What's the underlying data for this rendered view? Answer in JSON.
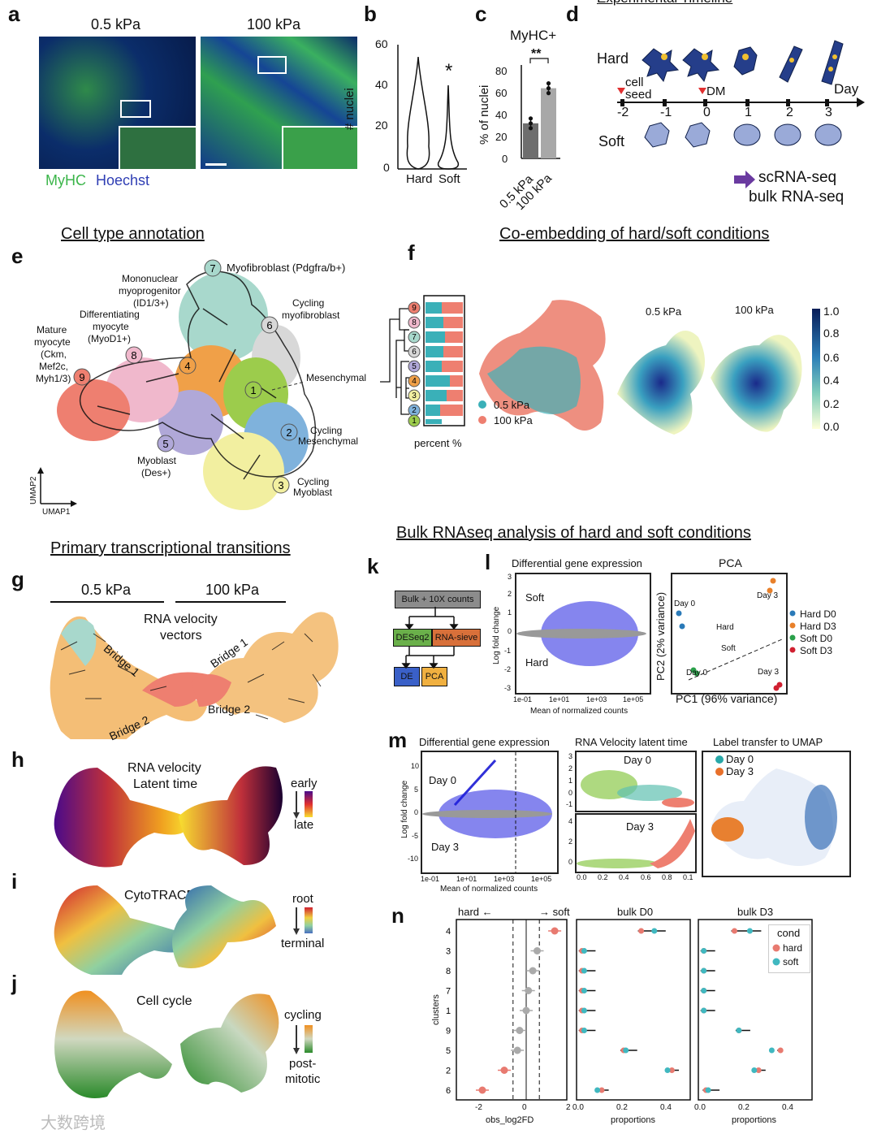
{
  "panels": {
    "a": {
      "letter": "a",
      "titles": [
        "0.5 kPa",
        "100 kPa"
      ],
      "stain1": "MyHC",
      "stain2": "Hoechst"
    },
    "b": {
      "letter": "b",
      "ylabel": "# nuclei",
      "ticks": [
        "60",
        "40",
        "20",
        "0"
      ],
      "xlabels": [
        "Hard",
        "Soft"
      ],
      "sig": "*"
    },
    "c": {
      "letter": "c",
      "title": "MyHC+",
      "ylabel": "% of nuclei",
      "ticks": [
        "80",
        "60",
        "40",
        "20",
        "0"
      ],
      "xlabels": [
        "0.5 kPa",
        "100 kPa"
      ],
      "sig": "**"
    },
    "d": {
      "letter": "d",
      "title": "Experimental Timeline",
      "hard": "Hard",
      "soft": "Soft",
      "cellseed": "cell seed",
      "dm": "DM",
      "day": "Day",
      "days": [
        "-2",
        "-1",
        "0",
        "1",
        "2",
        "3"
      ],
      "out1": "scRNA-seq",
      "out2": "bulk RNA-seq"
    },
    "e": {
      "letter": "e"
    },
    "f": {
      "letter": "f",
      "legend1": "0.5 kPa",
      "legend2": "100 kPa",
      "xlabel": "percent %",
      "sub1": "0.5 kPa",
      "sub2": "100 kPa",
      "cticks": [
        "1.0",
        "0.8",
        "0.6",
        "0.4",
        "0.2",
        "0.0"
      ]
    },
    "g": {
      "letter": "g",
      "t1": "0.5 kPa",
      "t2": "100 kPa",
      "center1": "RNA velocity",
      "center2": "vectors",
      "bridge1": "Bridge 1",
      "bridge2": "Bridge 2"
    },
    "h": {
      "letter": "h",
      "title1": "RNA velocity",
      "title2": "Latent time",
      "early": "early",
      "late": "late"
    },
    "i": {
      "letter": "i",
      "title": "CytoTRACE",
      "root": "root",
      "terminal": "terminal"
    },
    "j": {
      "letter": "j",
      "title": "Cell cycle",
      "cycling": "cycling",
      "post1": "post-",
      "post2": "mitotic"
    },
    "k": {
      "letter": "k",
      "b1": "Bulk + 10X counts",
      "b2": "DESeq2",
      "b3": "RNA-sieve",
      "b4": "DE",
      "b5": "PCA"
    },
    "l": {
      "letter": "l",
      "title1": "Differential gene expression",
      "title2": "PCA",
      "soft": "Soft",
      "hard": "Hard",
      "ylabel": "Log fold change",
      "xlabel": "Mean of normalized counts",
      "yticks": [
        "3",
        "2",
        "1",
        "0",
        "-1",
        "-2",
        "-3"
      ],
      "xticks": [
        "1e-01",
        "1e+01",
        "1e+03",
        "1e+05"
      ],
      "pc1": "PC1 (96% variance)",
      "pc2": "PC2 (2% variance)",
      "day0a": "Day 0",
      "day3a": "Day 3",
      "day0b": "Day 0",
      "day3b": "Day 3",
      "hardlbl": "Hard",
      "softlbl": "Soft",
      "legend": [
        "Hard D0",
        "Hard D3",
        "Soft D0",
        "Soft D3"
      ]
    },
    "m": {
      "letter": "m",
      "title1": "Differential gene expression",
      "title2": "RNA Velocity latent time",
      "title3": "Label transfer to UMAP",
      "day0": "Day 0",
      "day3": "Day 3",
      "ylabel": "Log fold change",
      "xlabel": "Mean of normalized counts",
      "yticks": [
        "10",
        "5",
        "0",
        "-5",
        "-10"
      ],
      "xticks": [
        "1e-01",
        "1e+01",
        "1e+03",
        "1e+05"
      ],
      "mid_day0": "Day 0",
      "mid_day3": "Day 3",
      "mid_yticks1": [
        "3",
        "2",
        "1",
        "0",
        "-1"
      ],
      "mid_yticks2": [
        "4",
        "2",
        "0"
      ],
      "mid_xticks": [
        "0.0",
        "0.2",
        "0.4",
        "0.6",
        "0.8",
        "0.1"
      ],
      "leg_day0": "Day 0",
      "leg_day3": "Day 3"
    },
    "n": {
      "letter": "n",
      "hard": "hard ←",
      "soft": "→ soft",
      "ylabel": "clusters",
      "xlabel1": "obs_log2FD",
      "xlabel2": "proportions",
      "xlabel3": "proportions",
      "sub2": "bulk D0",
      "sub3": "bulk D3",
      "legend_title": "cond",
      "legend_hard": "hard",
      "legend_soft": "soft",
      "clusters": [
        "4",
        "3",
        "8",
        "7",
        "1",
        "9",
        "5",
        "2",
        "6"
      ],
      "xticks1": [
        "-2",
        "0",
        "2"
      ],
      "xticks2": [
        "0.0",
        "0.2",
        "0.4"
      ]
    }
  },
  "section_titles": {
    "cell_type": "Cell type annotation",
    "coembed": "Co-embedding of hard/soft conditions",
    "primary": "Primary transcriptional transitions",
    "bulk": "Bulk RNAseq analysis of hard and soft conditions"
  },
  "clusters_e": [
    {
      "id": "1",
      "label": "Mesenchymal",
      "color": "#9ccc4c"
    },
    {
      "id": "2",
      "label": "Cycling Mesenchymal",
      "color": "#7fb2dc"
    },
    {
      "id": "3",
      "label": "Cycling Myoblast",
      "color": "#f2efa0"
    },
    {
      "id": "4",
      "label": "",
      "color": "#f0a048"
    },
    {
      "id": "5",
      "label": "Myoblast (Des+)",
      "color": "#b0a8d8"
    },
    {
      "id": "6",
      "label": "Cycling myofibroblast",
      "color": "#d8d8d8"
    },
    {
      "id": "7",
      "label": "Myofibroblast (Pdgfra/b+)",
      "color": "#a8d8cc"
    },
    {
      "id": "8",
      "label": "Differentiating myocyte (MyoD1+)",
      "color": "#f0b8cc"
    },
    {
      "id": "9",
      "label": "Mature myocyte (Ckm, Mef2c, Myh1/3)",
      "color": "#ee7f70"
    }
  ],
  "e_labels": {
    "mono": [
      "Mononuclear",
      "myoprogenitor",
      "(ID1/3+)"
    ],
    "diff": [
      "Differentiating",
      "myocyte",
      "(MyoD1+)"
    ],
    "mature": [
      "Mature",
      "myocyte",
      "(Ckm,",
      "Mef2c,",
      "Myh1/3)"
    ],
    "myofib": "Myofibroblast (Pdgfra/b+)",
    "cycmyofib": [
      "Cycling",
      "myofibroblast"
    ],
    "mesench": "Mesenchymal",
    "cycmes": [
      "Cycling",
      "Mesenchymal"
    ],
    "cycmyo": [
      "Cycling",
      "Myoblast"
    ],
    "myoblast": [
      "Myoblast",
      "(Des+)"
    ],
    "umap1": "UMAP1",
    "umap2": "UMAP2"
  },
  "watermark": "大数跨境",
  "chart_data": [
    {
      "type": "bar",
      "title": "MyHC+",
      "categories": [
        "0.5 kPa",
        "100 kPa"
      ],
      "values": [
        36,
        72
      ],
      "ylabel": "% of nuclei",
      "ylim": [
        0,
        90
      ]
    },
    {
      "type": "scatter",
      "title": "# nuclei",
      "categories": [
        "Hard",
        "Soft"
      ],
      "ylabel": "# nuclei",
      "ylim": [
        0,
        60
      ]
    },
    {
      "type": "scatter",
      "title": "obs_log2FD",
      "categories": [
        "4",
        "3",
        "8",
        "7",
        "1",
        "9",
        "5",
        "2",
        "6"
      ],
      "values": [
        1.3,
        0.5,
        0.3,
        0.1,
        0.0,
        -0.3,
        -0.4,
        -1.0,
        -2.0
      ],
      "xlabel": "obs_log2FD"
    }
  ]
}
